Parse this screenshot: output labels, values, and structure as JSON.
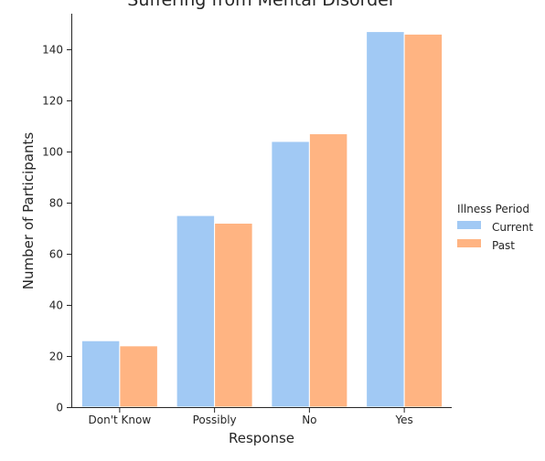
{
  "chart_data": {
    "type": "bar",
    "title": "Suffering from Mental Disorder",
    "xlabel": "Response",
    "ylabel": "Number of Participants",
    "categories": [
      "Don't Know",
      "Possibly",
      "No",
      "Yes"
    ],
    "series": [
      {
        "name": "Current",
        "color": "#a1c9f4",
        "values": [
          26,
          75,
          104,
          147
        ]
      },
      {
        "name": "Past",
        "color": "#ffb482",
        "values": [
          24,
          72,
          107,
          146
        ]
      }
    ],
    "ylim": [
      0,
      154
    ],
    "yticks": [
      0,
      20,
      40,
      60,
      80,
      100,
      120,
      140
    ],
    "grid": false,
    "legend": {
      "title": "Illness Period",
      "placement": "right"
    }
  }
}
